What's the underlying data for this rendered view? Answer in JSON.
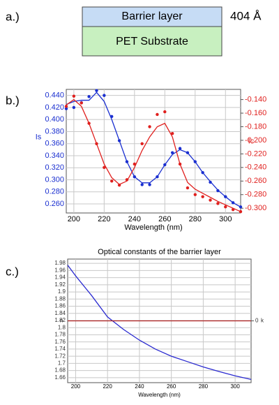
{
  "diagram": {
    "label": "a.)",
    "layers": [
      "Barrier layer",
      "PET Substrate"
    ],
    "layer_colors": [
      "#c6dcf5",
      "#c8f0c0"
    ],
    "thickness": "404 Å"
  },
  "chart_data": [
    {
      "type": "line",
      "panel_label": "b.)",
      "x_label": "Wavelength (nm)",
      "y_label": "Is",
      "y2_label": "Ic",
      "x": [
        195,
        200,
        205,
        210,
        215,
        220,
        225,
        230,
        235,
        240,
        245,
        250,
        255,
        260,
        265,
        270,
        275,
        280,
        285,
        290,
        295,
        300,
        305,
        310
      ],
      "xlim": [
        195,
        310
      ],
      "xticks": [
        200,
        220,
        240,
        260,
        280,
        300
      ],
      "ylim": [
        0.245,
        0.45
      ],
      "yticks": [
        {
          "value": 0.26,
          "label": "0.260"
        },
        {
          "value": 0.28,
          "label": "0.280"
        },
        {
          "value": 0.3,
          "label": "0.300"
        },
        {
          "value": 0.32,
          "label": "0.320"
        },
        {
          "value": 0.34,
          "label": "0.340"
        },
        {
          "value": 0.36,
          "label": "0.360"
        },
        {
          "value": 0.38,
          "label": "0.380"
        },
        {
          "value": 0.4,
          "label": "0.400"
        },
        {
          "value": 0.42,
          "label": "0.420"
        },
        {
          "value": 0.44,
          "label": "0.440"
        }
      ],
      "y2lim": [
        -0.307,
        -0.125
      ],
      "y2ticks": [
        {
          "value": -0.14,
          "label": "-0.140"
        },
        {
          "value": -0.16,
          "label": "-0.160"
        },
        {
          "value": -0.18,
          "label": "-0.180"
        },
        {
          "value": -0.2,
          "label": "-0.200"
        },
        {
          "value": -0.22,
          "label": "-0.220"
        },
        {
          "value": -0.24,
          "label": "-0.240"
        },
        {
          "value": -0.26,
          "label": "-0.260"
        },
        {
          "value": -0.28,
          "label": "-0.280"
        },
        {
          "value": -0.3,
          "label": "-0.300"
        }
      ],
      "y_color": "#1a2fd0",
      "y2_color": "#e0201e",
      "grid": true,
      "series": [
        {
          "color": "#1a2fd0",
          "style": "markers",
          "values": [
            0.418,
            0.42,
            0.428,
            0.438,
            0.448,
            0.44,
            0.405,
            0.365,
            0.33,
            0.305,
            0.292,
            0.292,
            0.305,
            0.325,
            0.345,
            0.352,
            0.345,
            0.33,
            0.312,
            0.296,
            0.282,
            0.272,
            0.262,
            0.255
          ]
        },
        {
          "color": "#1a2fd0",
          "style": "line",
          "values": [
            0.425,
            0.43,
            0.432,
            0.432,
            0.445,
            0.43,
            0.4,
            0.365,
            0.33,
            0.305,
            0.295,
            0.295,
            0.305,
            0.325,
            0.342,
            0.35,
            0.345,
            0.33,
            0.312,
            0.297,
            0.283,
            0.272,
            0.262,
            0.255
          ]
        },
        {
          "color": "#e0201e",
          "style": "markers",
          "axis": "y2",
          "values": [
            -0.15,
            -0.135,
            -0.145,
            -0.175,
            -0.205,
            -0.24,
            -0.26,
            -0.266,
            -0.258,
            -0.235,
            -0.205,
            -0.18,
            -0.162,
            -0.158,
            -0.19,
            -0.235,
            -0.27,
            -0.28,
            -0.283,
            -0.288,
            -0.293,
            -0.298,
            -0.302,
            -0.305
          ]
        },
        {
          "color": "#e0201e",
          "style": "line",
          "axis": "y2",
          "values": [
            -0.148,
            -0.14,
            -0.15,
            -0.175,
            -0.205,
            -0.235,
            -0.255,
            -0.265,
            -0.26,
            -0.24,
            -0.215,
            -0.195,
            -0.18,
            -0.175,
            -0.195,
            -0.235,
            -0.262,
            -0.272,
            -0.278,
            -0.284,
            -0.29,
            -0.295,
            -0.3,
            -0.305
          ]
        }
      ]
    },
    {
      "type": "line",
      "panel_label": "c.)",
      "title": "Optical constants of the barrier layer",
      "x_label": "Wavelength (nm)",
      "y_label": "n",
      "y2_label": "k",
      "x": [
        195,
        200,
        210,
        220,
        230,
        240,
        250,
        260,
        270,
        280,
        290,
        300,
        310
      ],
      "xlim": [
        195,
        310
      ],
      "xticks": [
        200,
        220,
        240,
        260,
        280,
        300
      ],
      "ylim": [
        1.646,
        1.992
      ],
      "yticks": [
        1.66,
        1.68,
        1.7,
        1.72,
        1.74,
        1.76,
        1.78,
        1.8,
        1.82,
        1.84,
        1.86,
        1.88,
        1.9,
        1.92,
        1.94,
        1.96,
        1.98
      ],
      "y2lim": [
        -1,
        1
      ],
      "y2ticks": [
        0
      ],
      "y_color": "#333333",
      "y2_color": "#333333",
      "grid": true,
      "series": [
        {
          "color": "#2a2ad0",
          "style": "line",
          "values": [
            1.975,
            1.945,
            1.89,
            1.83,
            1.795,
            1.765,
            1.74,
            1.72,
            1.705,
            1.69,
            1.677,
            1.665,
            1.655
          ]
        },
        {
          "color": "#b02020",
          "style": "line",
          "axis": "y2",
          "values": [
            0,
            0,
            0,
            0,
            0,
            0,
            0,
            0,
            0,
            0,
            0,
            0,
            0
          ]
        }
      ]
    }
  ]
}
